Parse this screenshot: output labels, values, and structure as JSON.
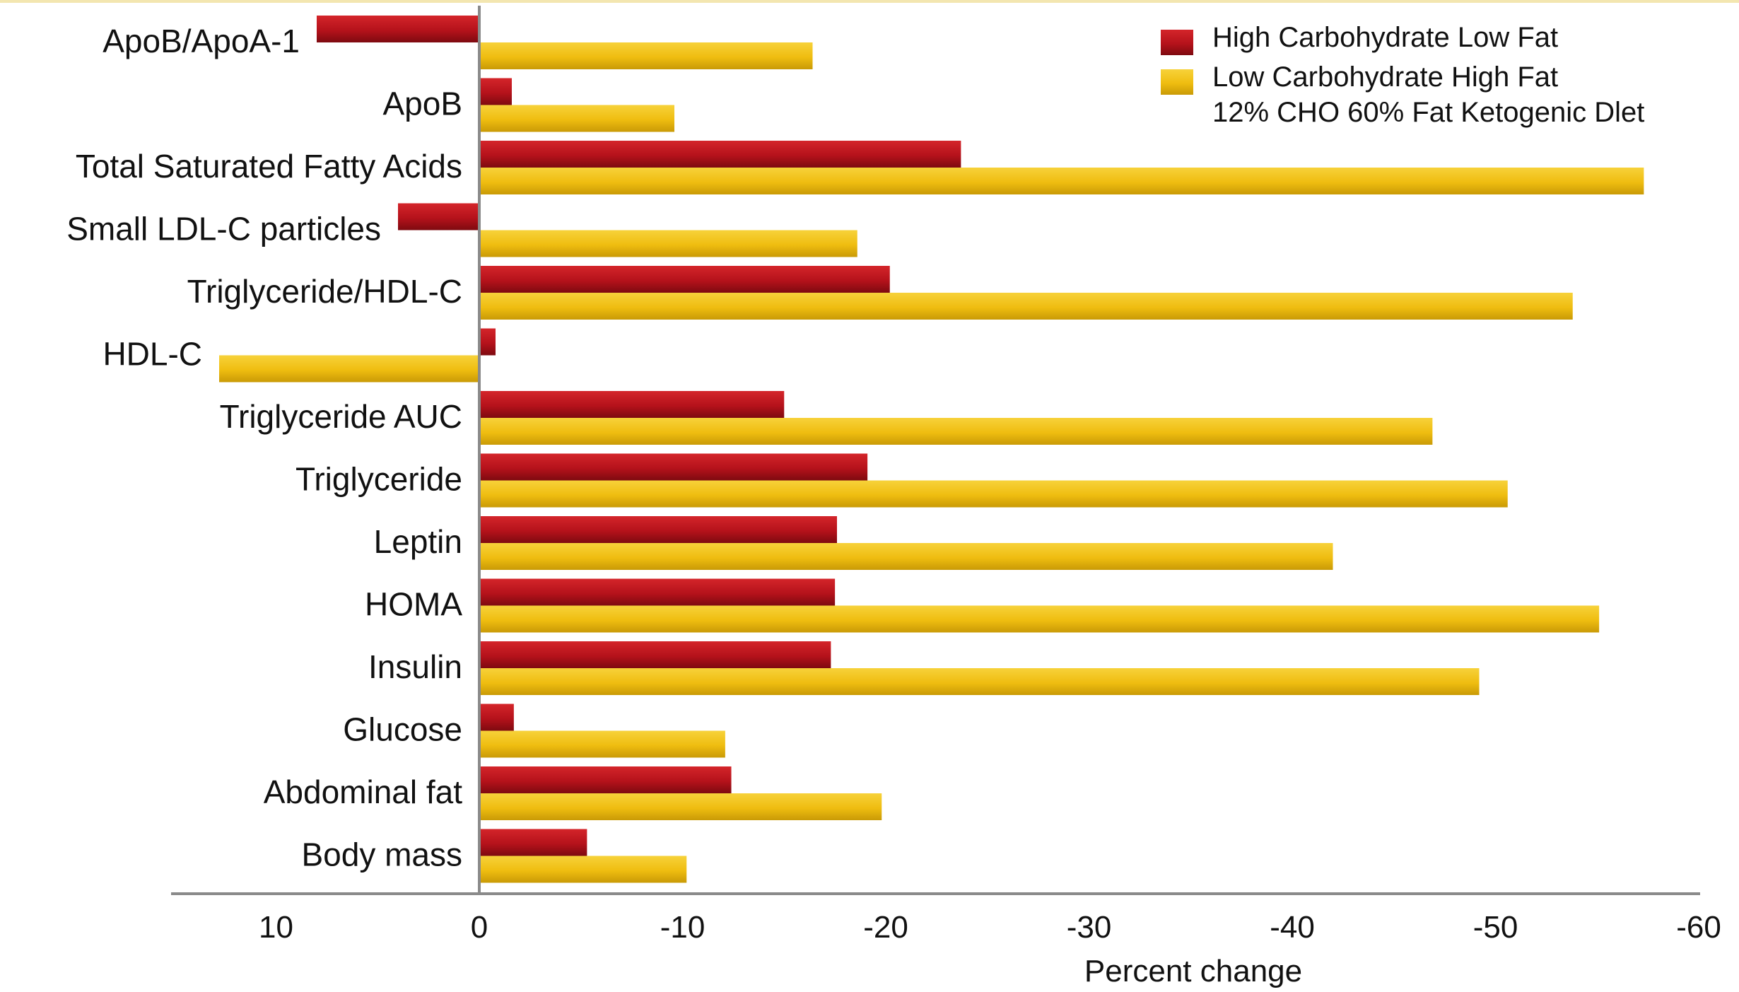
{
  "chart_data": {
    "type": "bar",
    "orientation": "horizontal",
    "categories": [
      "ApoB/ApoA-1",
      "ApoB",
      "Total Saturated Fatty Acids",
      "Small LDL-C particles",
      "Triglyceride/HDL-C",
      "HDL-C",
      "Triglyceride AUC",
      "Triglyceride",
      "Leptin",
      "HOMA",
      "Insulin",
      "Glucose",
      "Abdominal fat",
      "Body mass"
    ],
    "series": [
      {
        "name": "High Carbohydrate Low Fat",
        "color": "#b8141c",
        "values": [
          8,
          -1.6,
          -23.7,
          4,
          -20.2,
          -0.8,
          -15,
          -19.1,
          -17.6,
          -17.5,
          -17.3,
          -1.7,
          -12.4,
          -5.3
        ]
      },
      {
        "name": "Low Carbohydrate High Fat\n12% CHO 60% Fat Ketogenic Diet",
        "legend_lines": [
          "Low Carbohydrate High Fat",
          "12% CHO 60% Fat Ketogenic Dlet"
        ],
        "color": "#f0c010",
        "values": [
          -16.4,
          -9.6,
          -57.3,
          -18.6,
          -53.8,
          12.8,
          -46.9,
          -50.6,
          -42,
          -55.1,
          -49.2,
          -12.1,
          -19.8,
          -10.2
        ]
      }
    ],
    "xlabel": "Percent change",
    "ylabel": "",
    "title": "",
    "xlim": [
      13.5,
      -60.5
    ],
    "xticks": [
      10,
      0,
      -10,
      -20,
      -30,
      -40,
      -50,
      -60
    ],
    "xtick_labels": [
      "10",
      "0",
      "-10",
      "-20",
      "-30",
      "-40",
      "-50",
      "-60"
    ],
    "axis_reversed": true,
    "grid": false,
    "legend_position": "top-right"
  }
}
